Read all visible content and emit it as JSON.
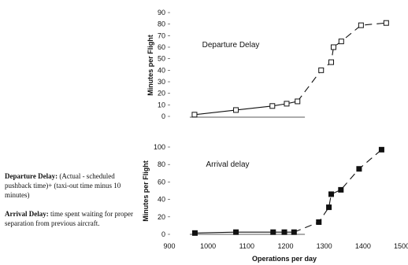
{
  "notes": {
    "departure_term": "Departure Delay:",
    "departure_text": " (Actual - scheduled pushback time)+ (taxi-out time minus 10 minutes)",
    "arrival_term": "Arrival Delay:",
    "arrival_text": " time spent waiting for proper separation from previous aircraft."
  },
  "chart_data": [
    {
      "type": "line",
      "title": "Departure Delay",
      "ylabel": "Minutes per Flight",
      "xlabel": "",
      "xlim": [
        900,
        1500
      ],
      "ylim": [
        0,
        90
      ],
      "yticks": [
        0,
        10,
        20,
        30,
        40,
        50,
        60,
        70,
        80,
        90
      ],
      "marker": "open-square",
      "series": [
        {
          "x": [
            965,
            1072,
            1166,
            1203,
            1231,
            1292,
            1318,
            1324,
            1344,
            1395,
            1460
          ],
          "y": [
            1.5,
            5.5,
            9,
            11,
            13,
            40,
            47,
            60,
            65,
            79,
            81
          ]
        }
      ]
    },
    {
      "type": "line",
      "title": "Arrival delay",
      "ylabel": "Minutes per Flight",
      "xlabel": "Operations per day",
      "xlim": [
        900,
        1500
      ],
      "ylim": [
        0,
        100
      ],
      "xticks": [
        900,
        1000,
        1100,
        1200,
        1300,
        1400,
        1500
      ],
      "yticks": [
        0,
        20,
        40,
        60,
        80,
        100
      ],
      "marker": "filled-square",
      "series": [
        {
          "x": [
            966,
            1072,
            1168,
            1197,
            1222,
            1286,
            1312,
            1318,
            1343,
            1390,
            1448
          ],
          "y": [
            1.5,
            2.5,
            2.5,
            2.5,
            2.5,
            14,
            31,
            46,
            51,
            75,
            97
          ]
        }
      ]
    }
  ]
}
